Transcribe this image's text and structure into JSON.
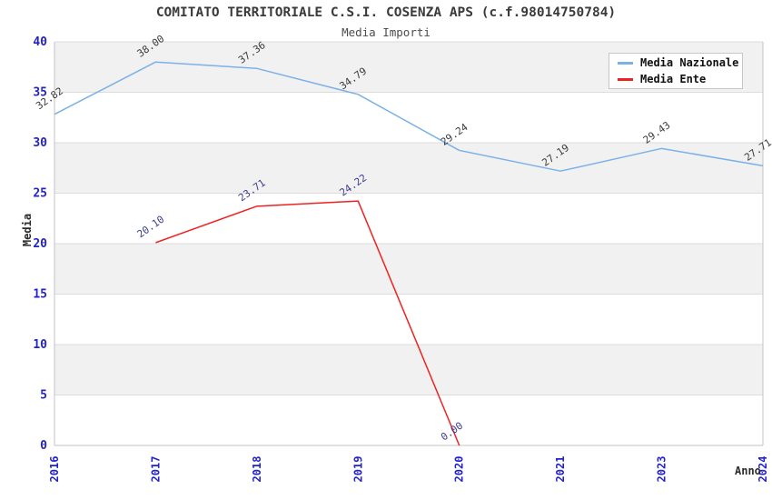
{
  "title": "COMITATO TERRITORIALE C.S.I. COSENZA APS (c.f.98014750784)",
  "subtitle": "Media Importi",
  "chart_data": {
    "type": "line",
    "title": "COMITATO TERRITORIALE C.S.I. COSENZA APS (c.f.98014750784)",
    "subtitle": "Media Importi",
    "xlabel": "Anno",
    "ylabel": "Media",
    "categories": [
      "2016",
      "2017",
      "2018",
      "2019",
      "2020",
      "2021",
      "2023",
      "2024"
    ],
    "ylim": [
      0,
      40
    ],
    "ytick_step": 5,
    "grid": "horizontal-bands-alternating",
    "legend_position": "top-right",
    "series": [
      {
        "name": "Media Nazionale",
        "color": "#7cb1e8",
        "label_color": "#3a3a3a",
        "values": [
          32.82,
          38.0,
          37.36,
          34.79,
          29.24,
          27.19,
          29.43,
          27.71
        ]
      },
      {
        "name": "Media Ente",
        "color": "#ee2222",
        "label_color": "#3c3c8e",
        "values": [
          null,
          20.1,
          23.71,
          24.22,
          0.0,
          null,
          null,
          null
        ]
      }
    ],
    "colors": {
      "tick_label": "#2222cc",
      "band_fill": "#f1f1f1",
      "gridline": "#dcdcdc",
      "axis_line": "#c3c3c3",
      "title_text": "#3a3a3a"
    }
  }
}
